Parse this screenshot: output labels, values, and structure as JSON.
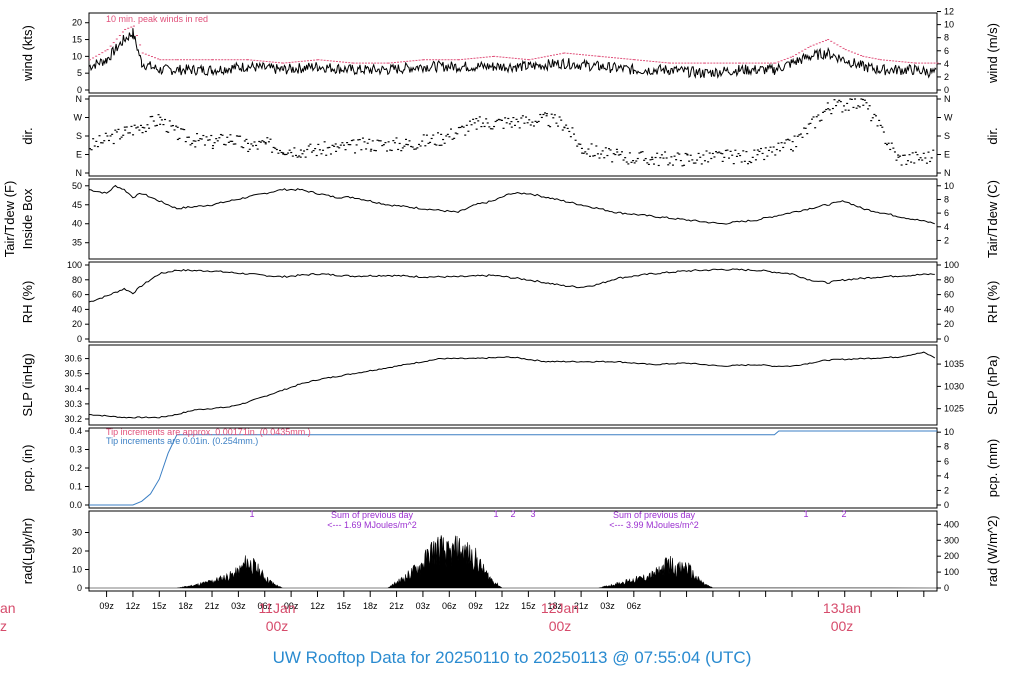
{
  "footer": {
    "title": "UW Rooftop Data for 20250110  to  20250113 @ 07:55:04  (UTC)"
  },
  "colors": {
    "peak": "#e0507a",
    "pcp": "#3b7fc4",
    "purple": "#9b30d0",
    "date": "#d64b6b",
    "footer": "#2a8bd0"
  },
  "chart_data": [
    {
      "type": "line",
      "panel": "wind",
      "ylabel_left": "wind (kts)",
      "ylabel_right": "wind (m/s)",
      "annotation": "10 min. peak winds in red",
      "ylim": [
        0,
        22
      ],
      "yticks_left": [
        0,
        5,
        10,
        15,
        20
      ],
      "yticks_right": [
        0,
        2,
        4,
        6,
        8,
        10,
        12
      ],
      "series": [
        {
          "name": "wind"
        },
        {
          "name": "10 min. peak winds"
        }
      ],
      "x_hours": [
        0,
        2,
        4,
        5,
        6,
        8,
        10,
        14,
        18,
        22,
        26,
        30,
        34,
        38,
        42,
        46,
        50,
        54,
        58,
        62,
        66,
        70,
        74,
        78,
        80,
        82,
        84,
        86,
        88,
        90,
        94,
        96.5
      ],
      "values": [
        7,
        9,
        15,
        17,
        8,
        6,
        6,
        6,
        7,
        6,
        7,
        6,
        6,
        7,
        7,
        7,
        7,
        8,
        7,
        6,
        6,
        5,
        6,
        6,
        8,
        10,
        11,
        9,
        7,
        6,
        6,
        5
      ],
      "peak_values": [
        9,
        12,
        18,
        19,
        11,
        9,
        9,
        9,
        9,
        8,
        9,
        8,
        8,
        9,
        9,
        10,
        9,
        11,
        10,
        9,
        8,
        8,
        8,
        8,
        10,
        13,
        15,
        12,
        10,
        9,
        8,
        8
      ]
    },
    {
      "type": "scatter",
      "panel": "dir.",
      "ylabel_left": "dir.",
      "ylabel_right": "dir.",
      "yticks": [
        "N",
        "E",
        "S",
        "W",
        "N"
      ],
      "x_hours": [
        0,
        4,
        6,
        8,
        10,
        12,
        14,
        16,
        18,
        20,
        22,
        24,
        28,
        32,
        36,
        40,
        44,
        48,
        52,
        54,
        56,
        60,
        64,
        68,
        72,
        76,
        80,
        84,
        88,
        92,
        96
      ],
      "values_deg": [
        130,
        200,
        230,
        260,
        190,
        160,
        150,
        170,
        130,
        140,
        120,
        110,
        120,
        140,
        140,
        170,
        240,
        250,
        260,
        240,
        120,
        80,
        70,
        70,
        80,
        80,
        140,
        320,
        350,
        70,
        80
      ]
    },
    {
      "type": "line",
      "panel": "temp",
      "ylabel_left_line1": "Tair/Tdew (F)",
      "ylabel_left_line2": "Inside Box",
      "ylabel_right": "Tair/Tdew (C)",
      "ylim": [
        31.5,
        51
      ],
      "yticks_left": [
        35,
        40,
        45,
        50
      ],
      "yticks_right": [
        2,
        4,
        6,
        8,
        10
      ],
      "x_hours": [
        0,
        2,
        3,
        4,
        5,
        6,
        8,
        10,
        14,
        18,
        20,
        22,
        24,
        26,
        28,
        30,
        34,
        38,
        42,
        44,
        46,
        48,
        50,
        52,
        56,
        60,
        64,
        68,
        72,
        76,
        80,
        84,
        86,
        88,
        92,
        96.5
      ],
      "values": [
        49,
        48,
        50,
        49,
        47,
        48,
        46,
        44,
        45,
        47,
        48,
        49,
        49,
        48,
        47,
        47,
        45,
        44,
        43,
        45,
        46,
        48,
        48,
        47,
        45,
        43,
        42,
        41,
        40,
        41,
        43,
        45,
        46,
        44,
        42,
        40
      ]
    },
    {
      "type": "line",
      "panel": "rh",
      "ylabel_left": "RH (%)",
      "ylabel_right": "RH (%)",
      "ylim": [
        0,
        100
      ],
      "yticks": [
        0,
        20,
        40,
        60,
        80,
        100
      ],
      "x_hours": [
        0,
        2,
        4,
        5,
        6,
        8,
        10,
        14,
        18,
        22,
        26,
        30,
        34,
        38,
        42,
        46,
        50,
        52,
        54,
        56,
        58,
        60,
        64,
        68,
        72,
        76,
        80,
        82,
        84,
        86,
        90,
        96.5
      ],
      "values": [
        50,
        58,
        68,
        62,
        72,
        88,
        93,
        92,
        88,
        84,
        88,
        85,
        86,
        84,
        84,
        86,
        80,
        76,
        72,
        70,
        74,
        82,
        88,
        92,
        94,
        93,
        88,
        80,
        76,
        80,
        84,
        88
      ]
    },
    {
      "type": "line",
      "panel": "slp",
      "ylabel_left": "SLP (inHg)",
      "ylabel_right": "SLP (hPa)",
      "ylim": [
        30.18,
        30.67
      ],
      "yticks_left": [
        30.2,
        30.3,
        30.4,
        30.5,
        30.6
      ],
      "yticks_right": [
        1025,
        1030,
        1035
      ],
      "x_hours": [
        0,
        2,
        4,
        6,
        8,
        10,
        12,
        14,
        16,
        18,
        20,
        22,
        24,
        26,
        28,
        30,
        32,
        34,
        36,
        38,
        40,
        44,
        48,
        52,
        56,
        60,
        64,
        68,
        72,
        76,
        78,
        80,
        84,
        88,
        92,
        95,
        96.5
      ],
      "values": [
        30.23,
        30.22,
        30.21,
        30.21,
        30.21,
        30.23,
        30.26,
        30.27,
        30.28,
        30.31,
        30.35,
        30.39,
        30.43,
        30.46,
        30.48,
        30.5,
        30.52,
        30.54,
        30.56,
        30.58,
        30.6,
        30.6,
        30.61,
        30.58,
        30.58,
        30.58,
        30.56,
        30.57,
        30.55,
        30.56,
        30.55,
        30.55,
        30.59,
        30.6,
        30.61,
        30.64,
        30.6
      ]
    },
    {
      "type": "line",
      "panel": "pcp",
      "ylabel_left": "pcp. (in)",
      "ylabel_right": "pcp. (mm)",
      "annotation_1": "Tip increments are approx. 0.00171in. (0.0435mm.)",
      "annotation_2": "Tip increments are 0.01in. (0.254mm.)",
      "ylim": [
        0,
        0.4
      ],
      "yticks_left": [
        0,
        0.1,
        0.2,
        0.3,
        0.4
      ],
      "yticks_right": [
        0,
        2,
        4,
        6,
        8,
        10
      ],
      "x_hours": [
        0,
        5,
        6,
        7,
        8,
        9,
        9.5,
        10,
        78,
        78.5,
        96.5
      ],
      "values": [
        0,
        0,
        0.02,
        0.06,
        0.14,
        0.28,
        0.33,
        0.38,
        0.38,
        0.4,
        0.4
      ]
    },
    {
      "type": "area",
      "panel": "rad",
      "ylabel_left": "rad(Lgly/hr)",
      "ylabel_right": "rad (W/m^2)",
      "ylim": [
        0,
        40
      ],
      "yticks_left": [
        0,
        10,
        20,
        30
      ],
      "yticks_right": [
        0,
        100,
        200,
        300,
        400
      ],
      "x_hours": [
        10,
        12,
        14,
        16,
        17,
        18,
        19,
        20,
        21,
        22,
        34,
        36,
        38,
        39,
        40,
        41,
        42,
        43,
        44,
        45,
        46,
        47,
        58,
        60,
        62,
        64,
        65,
        66,
        67,
        68,
        69,
        70,
        71
      ],
      "values": [
        0,
        2,
        5,
        9,
        12,
        20,
        15,
        8,
        3,
        0,
        0,
        8,
        18,
        28,
        30,
        25,
        30,
        26,
        22,
        12,
        5,
        0,
        0,
        3,
        6,
        9,
        13,
        19,
        14,
        16,
        8,
        3,
        0
      ],
      "marks": [
        "1",
        "1",
        "2",
        "3",
        "1",
        "2"
      ],
      "note_1_line1": "Sum of previous day",
      "note_1_line2": "<--- 1.69 MJoules/m^2",
      "note_2_line1": "Sum of previous day",
      "note_2_line2": "<--- 3.99 MJoules/m^2"
    }
  ],
  "x_axis": {
    "ticks": [
      "09z",
      "12z",
      "15z",
      "18z",
      "21z",
      "03z",
      "06z",
      "09z",
      "12z",
      "15z",
      "18z",
      "21z",
      "03z",
      "06z",
      "09z",
      "12z",
      "15z",
      "18z",
      "21z",
      "03z",
      "06z"
    ],
    "dates": [
      {
        "day": "11Jan",
        "time": "00z"
      },
      {
        "day": "12Jan",
        "time": "00z"
      },
      {
        "day": "13Jan",
        "time": "00z"
      }
    ],
    "cut_left": {
      "day": "an",
      "time": "z"
    }
  }
}
